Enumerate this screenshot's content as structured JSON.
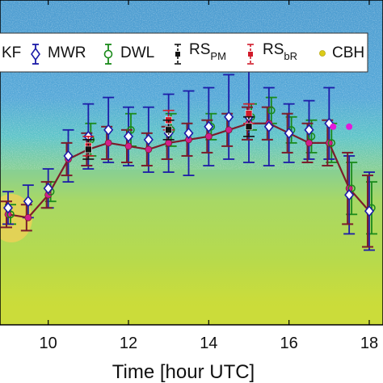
{
  "chart_data": {
    "type": "line",
    "xlabel": "Time [hour UTC]",
    "xlim": [
      9.0,
      18.0
    ],
    "ylim": [
      0,
      100
    ],
    "xticks": [
      10,
      12,
      14,
      16,
      18
    ],
    "grid": false,
    "legend_position": "top",
    "series": [
      {
        "name": "KF",
        "marker": "line",
        "color": "#7b1d2b",
        "x": [
          9.0,
          9.5,
          10.0,
          10.5,
          11.0,
          11.5,
          12.0,
          12.5,
          13.0,
          13.5,
          14.0,
          14.5,
          15.0,
          15.5,
          16.0,
          16.5,
          17.0,
          17.5,
          18.0
        ],
        "y": [
          34,
          33,
          40,
          51,
          54,
          56,
          55,
          54,
          56,
          57,
          58,
          60,
          62,
          62,
          59,
          56,
          56,
          42,
          35
        ],
        "err": [
          4,
          4,
          4,
          5,
          5,
          5,
          5,
          5,
          5,
          5,
          5,
          5,
          5,
          5,
          6,
          6,
          7,
          11,
          11
        ]
      },
      {
        "name": "MWR",
        "marker": "diamond",
        "color": "#1c1ca8",
        "x": [
          9.0,
          9.5,
          10.0,
          10.5,
          11.0,
          11.5,
          12.0,
          12.5,
          13.0,
          13.5,
          14.0,
          14.5,
          15.0,
          15.5,
          16.0,
          16.5,
          17.0,
          17.5,
          18.0
        ],
        "y": [
          36,
          38,
          42,
          52,
          58,
          60,
          58,
          57,
          59,
          59,
          61,
          64,
          64,
          61,
          59,
          60,
          62,
          40,
          35
        ],
        "err": [
          5,
          5,
          6,
          8,
          10,
          10,
          9,
          10,
          12,
          13,
          12,
          13,
          14,
          12,
          9,
          9,
          11,
          12,
          12
        ]
      },
      {
        "name": "DWL",
        "marker": "circle",
        "color": "#1a8a1a",
        "x": [
          9.0,
          10.0,
          11.0,
          12.0,
          13.0,
          14.0,
          15.0,
          15.5,
          16.0,
          16.5,
          17.0,
          17.5,
          18.0
        ],
        "y": [
          34,
          41,
          57,
          60,
          60,
          61,
          64,
          66,
          60,
          58,
          56,
          42,
          36
        ],
        "err": [
          3,
          3,
          5,
          5,
          5,
          4,
          4,
          4,
          4,
          5,
          6,
          8,
          8
        ]
      },
      {
        "name": "RS_PM",
        "marker": "square",
        "color": "#111111",
        "x": [
          11.0,
          13.0,
          15.0
        ],
        "y": [
          54,
          60,
          61
        ],
        "err": [
          3,
          3,
          3
        ]
      },
      {
        "name": "RS_bR",
        "marker": "square",
        "color": "#d11a2a",
        "x": [
          11.0,
          13.0,
          15.0
        ],
        "y": [
          55,
          63,
          65
        ],
        "err": [
          3,
          3,
          3
        ]
      },
      {
        "name": "CBH",
        "marker": "dot",
        "color": "#dccc18",
        "x": [],
        "y": []
      }
    ],
    "extra_markers": [
      {
        "x": 17.1,
        "y": 61,
        "color": "#e31ad9"
      },
      {
        "x": 17.5,
        "y": 61,
        "color": "#e31ad9"
      }
    ]
  },
  "legend": {
    "kf": "KF",
    "mwr": "MWR",
    "dwl": "DWL",
    "rspm_main": "RS",
    "rspm_sub": "PM",
    "rsbr_main": "RS",
    "rsbr_sub": "bR",
    "cbh": "CBH"
  },
  "colors": {
    "sky": "#4e9fd0",
    "field": "#9fd35a",
    "mix": "#c6d83b",
    "bottom": "#c9d93a",
    "patch": "#f0d055"
  }
}
